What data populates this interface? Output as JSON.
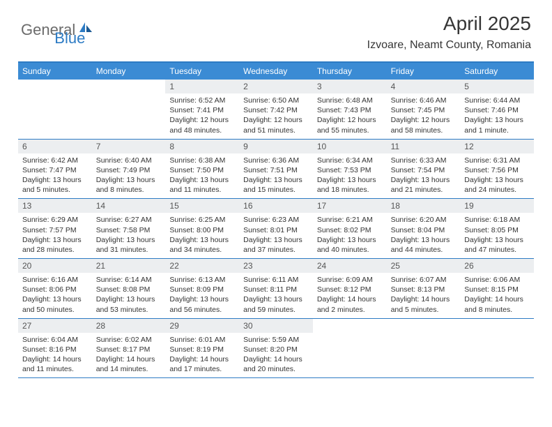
{
  "logo": {
    "part1": "General",
    "part2": "Blue"
  },
  "title": "April 2025",
  "location": "Izvoare, Neamt County, Romania",
  "colors": {
    "accent": "#3b8bd4",
    "border": "#2d7bc4",
    "num_bg": "#eceef0",
    "text": "#333333",
    "logo_gray": "#6b6b6b"
  },
  "day_names": [
    "Sunday",
    "Monday",
    "Tuesday",
    "Wednesday",
    "Thursday",
    "Friday",
    "Saturday"
  ],
  "weeks": [
    [
      {
        "n": "",
        "sr": "",
        "ss": "",
        "dl": ""
      },
      {
        "n": "",
        "sr": "",
        "ss": "",
        "dl": ""
      },
      {
        "n": "1",
        "sr": "Sunrise: 6:52 AM",
        "ss": "Sunset: 7:41 PM",
        "dl": "Daylight: 12 hours and 48 minutes."
      },
      {
        "n": "2",
        "sr": "Sunrise: 6:50 AM",
        "ss": "Sunset: 7:42 PM",
        "dl": "Daylight: 12 hours and 51 minutes."
      },
      {
        "n": "3",
        "sr": "Sunrise: 6:48 AM",
        "ss": "Sunset: 7:43 PM",
        "dl": "Daylight: 12 hours and 55 minutes."
      },
      {
        "n": "4",
        "sr": "Sunrise: 6:46 AM",
        "ss": "Sunset: 7:45 PM",
        "dl": "Daylight: 12 hours and 58 minutes."
      },
      {
        "n": "5",
        "sr": "Sunrise: 6:44 AM",
        "ss": "Sunset: 7:46 PM",
        "dl": "Daylight: 13 hours and 1 minute."
      }
    ],
    [
      {
        "n": "6",
        "sr": "Sunrise: 6:42 AM",
        "ss": "Sunset: 7:47 PM",
        "dl": "Daylight: 13 hours and 5 minutes."
      },
      {
        "n": "7",
        "sr": "Sunrise: 6:40 AM",
        "ss": "Sunset: 7:49 PM",
        "dl": "Daylight: 13 hours and 8 minutes."
      },
      {
        "n": "8",
        "sr": "Sunrise: 6:38 AM",
        "ss": "Sunset: 7:50 PM",
        "dl": "Daylight: 13 hours and 11 minutes."
      },
      {
        "n": "9",
        "sr": "Sunrise: 6:36 AM",
        "ss": "Sunset: 7:51 PM",
        "dl": "Daylight: 13 hours and 15 minutes."
      },
      {
        "n": "10",
        "sr": "Sunrise: 6:34 AM",
        "ss": "Sunset: 7:53 PM",
        "dl": "Daylight: 13 hours and 18 minutes."
      },
      {
        "n": "11",
        "sr": "Sunrise: 6:33 AM",
        "ss": "Sunset: 7:54 PM",
        "dl": "Daylight: 13 hours and 21 minutes."
      },
      {
        "n": "12",
        "sr": "Sunrise: 6:31 AM",
        "ss": "Sunset: 7:56 PM",
        "dl": "Daylight: 13 hours and 24 minutes."
      }
    ],
    [
      {
        "n": "13",
        "sr": "Sunrise: 6:29 AM",
        "ss": "Sunset: 7:57 PM",
        "dl": "Daylight: 13 hours and 28 minutes."
      },
      {
        "n": "14",
        "sr": "Sunrise: 6:27 AM",
        "ss": "Sunset: 7:58 PM",
        "dl": "Daylight: 13 hours and 31 minutes."
      },
      {
        "n": "15",
        "sr": "Sunrise: 6:25 AM",
        "ss": "Sunset: 8:00 PM",
        "dl": "Daylight: 13 hours and 34 minutes."
      },
      {
        "n": "16",
        "sr": "Sunrise: 6:23 AM",
        "ss": "Sunset: 8:01 PM",
        "dl": "Daylight: 13 hours and 37 minutes."
      },
      {
        "n": "17",
        "sr": "Sunrise: 6:21 AM",
        "ss": "Sunset: 8:02 PM",
        "dl": "Daylight: 13 hours and 40 minutes."
      },
      {
        "n": "18",
        "sr": "Sunrise: 6:20 AM",
        "ss": "Sunset: 8:04 PM",
        "dl": "Daylight: 13 hours and 44 minutes."
      },
      {
        "n": "19",
        "sr": "Sunrise: 6:18 AM",
        "ss": "Sunset: 8:05 PM",
        "dl": "Daylight: 13 hours and 47 minutes."
      }
    ],
    [
      {
        "n": "20",
        "sr": "Sunrise: 6:16 AM",
        "ss": "Sunset: 8:06 PM",
        "dl": "Daylight: 13 hours and 50 minutes."
      },
      {
        "n": "21",
        "sr": "Sunrise: 6:14 AM",
        "ss": "Sunset: 8:08 PM",
        "dl": "Daylight: 13 hours and 53 minutes."
      },
      {
        "n": "22",
        "sr": "Sunrise: 6:13 AM",
        "ss": "Sunset: 8:09 PM",
        "dl": "Daylight: 13 hours and 56 minutes."
      },
      {
        "n": "23",
        "sr": "Sunrise: 6:11 AM",
        "ss": "Sunset: 8:11 PM",
        "dl": "Daylight: 13 hours and 59 minutes."
      },
      {
        "n": "24",
        "sr": "Sunrise: 6:09 AM",
        "ss": "Sunset: 8:12 PM",
        "dl": "Daylight: 14 hours and 2 minutes."
      },
      {
        "n": "25",
        "sr": "Sunrise: 6:07 AM",
        "ss": "Sunset: 8:13 PM",
        "dl": "Daylight: 14 hours and 5 minutes."
      },
      {
        "n": "26",
        "sr": "Sunrise: 6:06 AM",
        "ss": "Sunset: 8:15 PM",
        "dl": "Daylight: 14 hours and 8 minutes."
      }
    ],
    [
      {
        "n": "27",
        "sr": "Sunrise: 6:04 AM",
        "ss": "Sunset: 8:16 PM",
        "dl": "Daylight: 14 hours and 11 minutes."
      },
      {
        "n": "28",
        "sr": "Sunrise: 6:02 AM",
        "ss": "Sunset: 8:17 PM",
        "dl": "Daylight: 14 hours and 14 minutes."
      },
      {
        "n": "29",
        "sr": "Sunrise: 6:01 AM",
        "ss": "Sunset: 8:19 PM",
        "dl": "Daylight: 14 hours and 17 minutes."
      },
      {
        "n": "30",
        "sr": "Sunrise: 5:59 AM",
        "ss": "Sunset: 8:20 PM",
        "dl": "Daylight: 14 hours and 20 minutes."
      },
      {
        "n": "",
        "sr": "",
        "ss": "",
        "dl": ""
      },
      {
        "n": "",
        "sr": "",
        "ss": "",
        "dl": ""
      },
      {
        "n": "",
        "sr": "",
        "ss": "",
        "dl": ""
      }
    ]
  ]
}
